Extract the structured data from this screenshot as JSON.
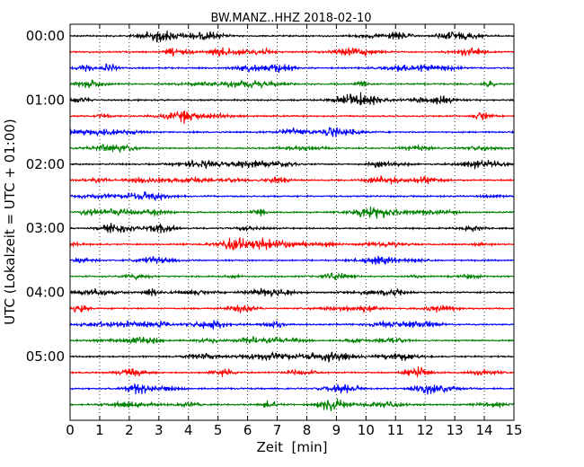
{
  "chart_data": {
    "type": "line",
    "title": "BW.MANZ..HHZ 2018-02-10",
    "xlabel": "Zeit  [min]",
    "ylabel": "UTC (Lokalzeit = UTC + 01:00)",
    "xlim": [
      0,
      15
    ],
    "x_ticks": [
      0,
      1,
      2,
      3,
      4,
      5,
      6,
      7,
      8,
      9,
      10,
      11,
      12,
      13,
      14,
      15
    ],
    "x_tick_labels": [
      "0",
      "1",
      "2",
      "3",
      "4",
      "5",
      "6",
      "7",
      "8",
      "9",
      "10",
      "11",
      "12",
      "13",
      "14",
      "15"
    ],
    "y_ticks_hours": [
      0,
      1,
      2,
      3,
      4,
      5
    ],
    "y_tick_labels": [
      "00:00",
      "01:00",
      "02:00",
      "03:00",
      "04:00",
      "05:00"
    ],
    "row_interval_minutes": 15,
    "rows": 24,
    "row_colors": [
      "#000000",
      "#ff0000",
      "#0000ff",
      "#008000"
    ],
    "grid": "vertical dotted at each minute"
  }
}
